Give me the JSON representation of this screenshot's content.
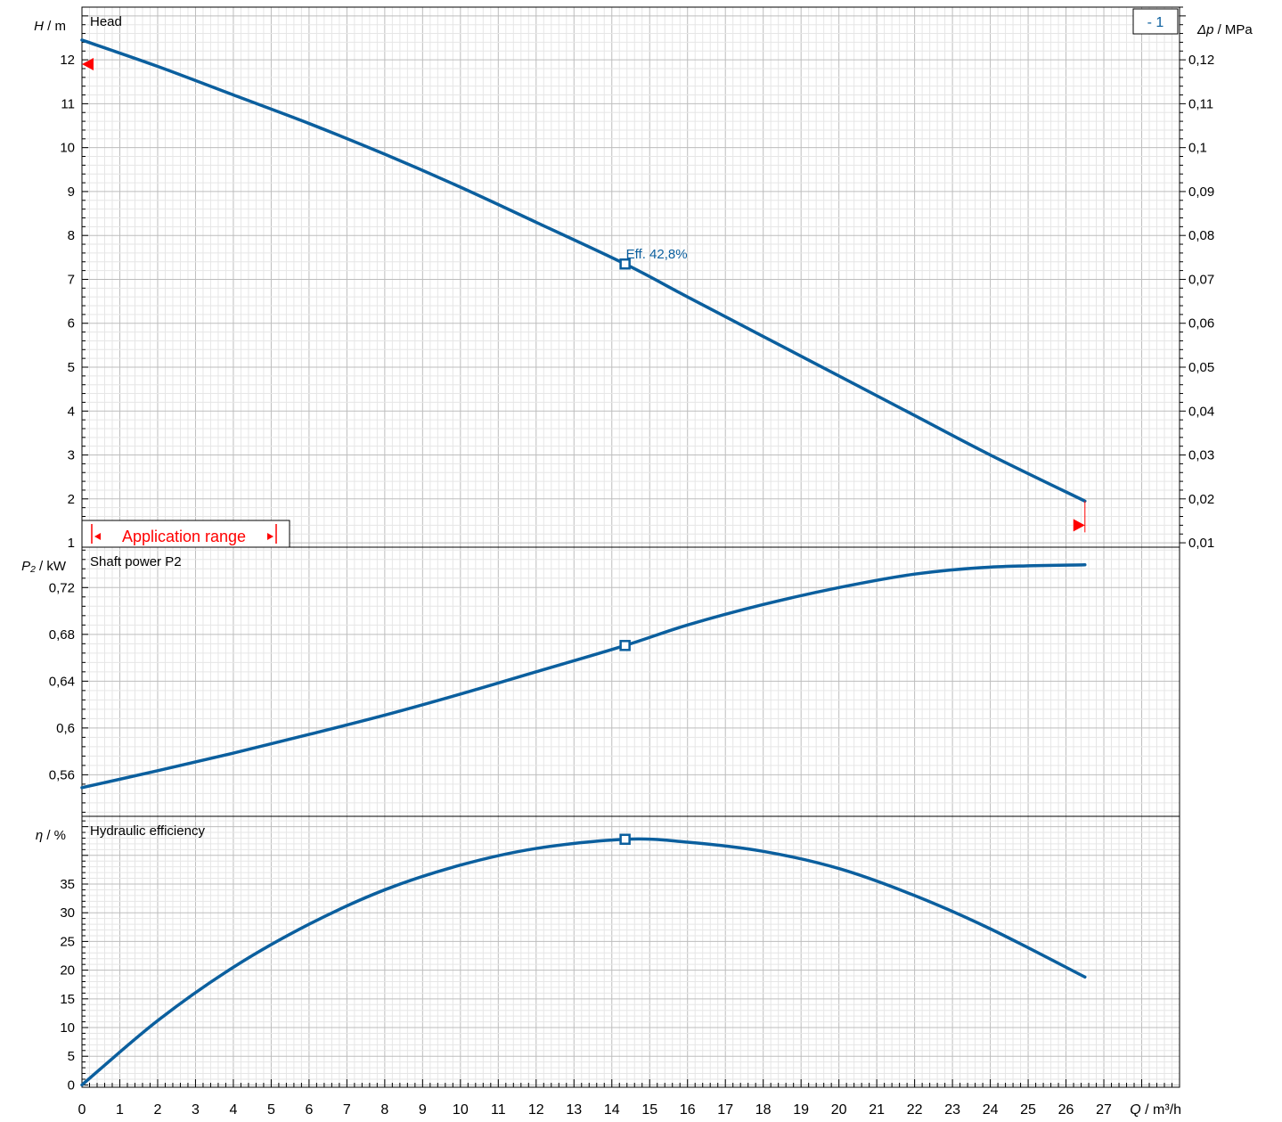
{
  "chart_data": [
    {
      "type": "line",
      "title": "Head",
      "ylabel_sym": "H",
      "ylabel_unit": " / m",
      "y2label_sym": "Δp",
      "y2label_unit": " / MPa",
      "xlim": [
        0,
        29
      ],
      "ylim": [
        0.9,
        13.2
      ],
      "y2lim": [
        0.009,
        0.132
      ],
      "yticks": [
        "1",
        "2",
        "3",
        "4",
        "5",
        "6",
        "7",
        "8",
        "9",
        "10",
        "11",
        "12"
      ],
      "y2ticks": [
        "0,01",
        "0,02",
        "0,03",
        "0,04",
        "0,05",
        "0,06",
        "0,07",
        "0,08",
        "0,09",
        "0,1",
        "0,11",
        "0,12"
      ],
      "series": [
        {
          "name": "",
          "color": "#0b5f9e",
          "x": [
            0,
            2,
            4,
            6,
            8,
            10,
            12,
            14.35,
            16,
            18,
            20,
            22,
            24,
            26.5
          ],
          "y": [
            12.45,
            11.85,
            11.2,
            10.55,
            9.85,
            9.1,
            8.3,
            7.35,
            6.6,
            5.7,
            4.8,
            3.9,
            3.0,
            1.95
          ]
        }
      ],
      "operating_point": {
        "x": 14.35,
        "y": 7.35,
        "label": "Eff.  42,8%"
      },
      "curve_badge": "- 1",
      "application_range": {
        "label": "Application range",
        "min_flow": 0,
        "max_flow": 26.5,
        "head_at_min": 11.9,
        "head_at_max": 1.4
      }
    },
    {
      "type": "line",
      "title": "Shaft power P2",
      "ylabel_sym": "P₂",
      "ylabel_unit": " / kW",
      "xlim": [
        0,
        29
      ],
      "ylim": [
        0.5245,
        0.7545
      ],
      "yticks": [
        "0,56",
        "0,6",
        "0,64",
        "0,68",
        "0,72"
      ],
      "series": [
        {
          "name": "",
          "color": "#0b5f9e",
          "x": [
            0,
            2,
            4,
            6,
            8,
            10,
            12,
            14.35,
            16,
            18,
            20,
            22,
            24,
            26.5
          ],
          "y": [
            0.549,
            0.5635,
            0.5785,
            0.5945,
            0.611,
            0.629,
            0.648,
            0.6705,
            0.688,
            0.7055,
            0.72,
            0.7315,
            0.7375,
            0.7395
          ]
        }
      ],
      "operating_point": {
        "x": 14.35,
        "y": 0.6705
      }
    },
    {
      "type": "line",
      "title": "Hydraulic efficiency",
      "ylabel_sym": "η",
      "ylabel_unit": " / %",
      "xlim": [
        0,
        29
      ],
      "xticks": [
        "0",
        "1",
        "2",
        "3",
        "4",
        "5",
        "6",
        "7",
        "8",
        "9",
        "10",
        "11",
        "12",
        "13",
        "14",
        "15",
        "16",
        "17",
        "18",
        "19",
        "20",
        "21",
        "22",
        "23",
        "24",
        "25",
        "26",
        "27"
      ],
      "xlabel_sym": "Q",
      "xlabel_unit": " / m³/h",
      "ylim": [
        -0.4,
        46.8
      ],
      "yticks": [
        "0",
        "5",
        "10",
        "15",
        "20",
        "25",
        "30",
        "35"
      ],
      "series": [
        {
          "name": "",
          "color": "#0b5f9e",
          "x": [
            0,
            2,
            4,
            6,
            8,
            10,
            12,
            14.35,
            16,
            18,
            20,
            22,
            24,
            26.5
          ],
          "y": [
            0,
            11.2,
            20.5,
            28.0,
            34.0,
            38.3,
            41.2,
            42.8,
            42.3,
            40.7,
            37.7,
            33.0,
            27.2,
            18.8
          ]
        }
      ],
      "operating_point": {
        "x": 14.35,
        "y": 42.8
      }
    }
  ]
}
